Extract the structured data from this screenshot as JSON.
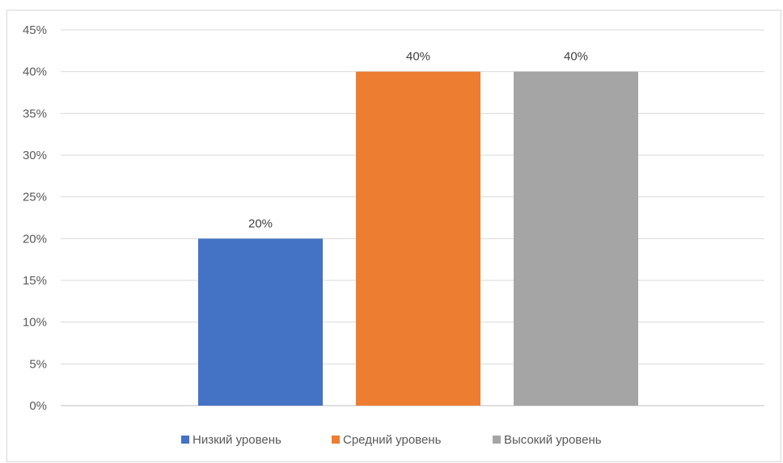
{
  "chart_data": {
    "type": "bar",
    "title": "",
    "xlabel": "",
    "ylabel": "",
    "ylim": [
      0,
      45
    ],
    "y_ticks": [
      0,
      5,
      10,
      15,
      20,
      25,
      30,
      35,
      40,
      45
    ],
    "y_tick_format": "percent",
    "grid": true,
    "legend_position": "bottom",
    "series": [
      {
        "name": "Низкий уровень",
        "value": 20,
        "label": "20%",
        "color": "#4472c4"
      },
      {
        "name": "Средний уровень",
        "value": 40,
        "label": "40%",
        "color": "#ed7d31"
      },
      {
        "name": "Высокий уровень",
        "value": 40,
        "label": "40%",
        "color": "#a5a5a5"
      }
    ]
  }
}
